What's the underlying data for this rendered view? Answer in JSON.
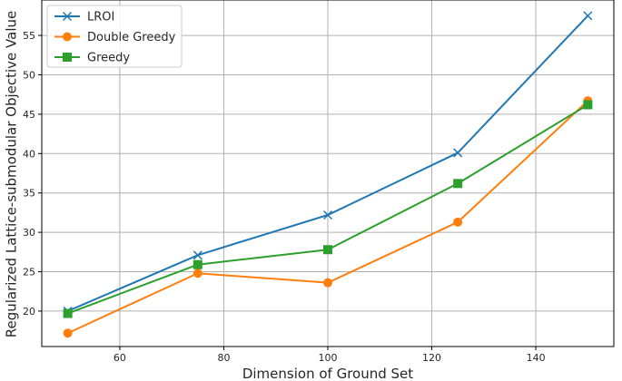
{
  "chart_data": {
    "type": "line",
    "x": [
      50,
      75,
      100,
      125,
      150
    ],
    "series": [
      {
        "name": "LROI",
        "values": [
          20.0,
          27.1,
          32.2,
          40.1,
          57.5
        ],
        "color": "#1f77b4",
        "marker": "x"
      },
      {
        "name": "Double Greedy",
        "values": [
          17.2,
          24.8,
          23.6,
          31.3,
          46.7
        ],
        "color": "#ff7f0e",
        "marker": "circle"
      },
      {
        "name": "Greedy",
        "values": [
          19.7,
          25.9,
          27.8,
          36.2,
          46.2
        ],
        "color": "#2ca02c",
        "marker": "square"
      }
    ],
    "xlabel": "Dimension of Ground Set",
    "ylabel": "Regularized Lattice-submodular Objective Value",
    "xlim": [
      45.0,
      155.0
    ],
    "ylim": [
      15.5,
      59.5
    ],
    "xticks": [
      60,
      80,
      100,
      120,
      140
    ],
    "yticks": [
      20,
      25,
      30,
      35,
      40,
      45,
      50,
      55
    ],
    "grid": true,
    "legend_position": "top-left"
  }
}
